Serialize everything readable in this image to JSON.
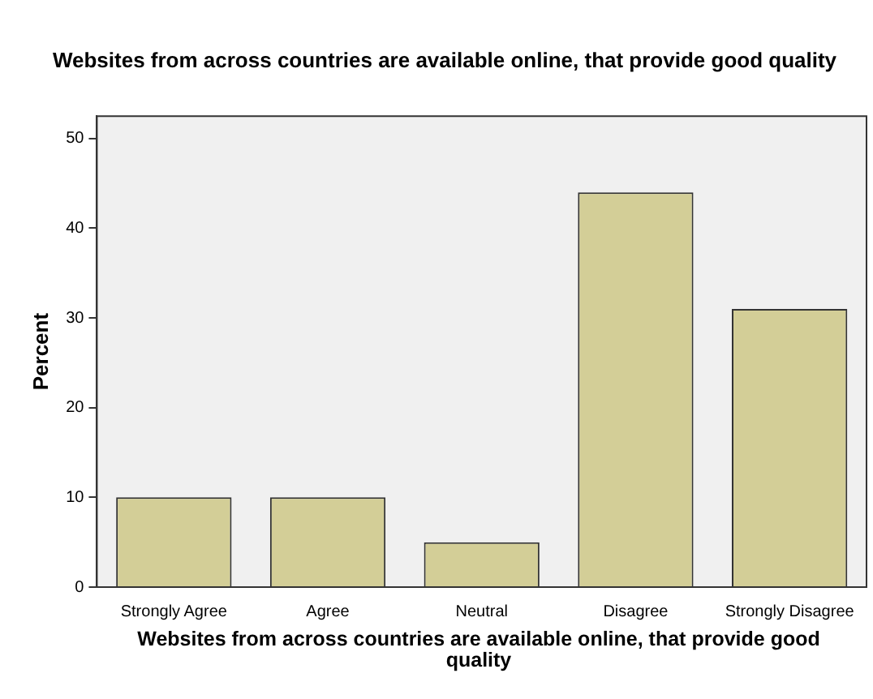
{
  "chart_data": {
    "type": "bar",
    "title": "Websites from across countries are available online, that provide good quality",
    "xlabel": "Websites from across countries are available online, that provide good quality",
    "ylabel": "Percent",
    "categories": [
      "Strongly Agree",
      "Agree",
      "Neutral",
      "Disagree",
      "Strongly Disagree"
    ],
    "values": [
      10,
      10,
      5,
      44,
      31
    ],
    "color": "#d3ce97",
    "ylim": [
      0,
      52.5
    ],
    "yticks": [
      0,
      10,
      20,
      30,
      40,
      50
    ],
    "grid": false,
    "legend": false
  }
}
